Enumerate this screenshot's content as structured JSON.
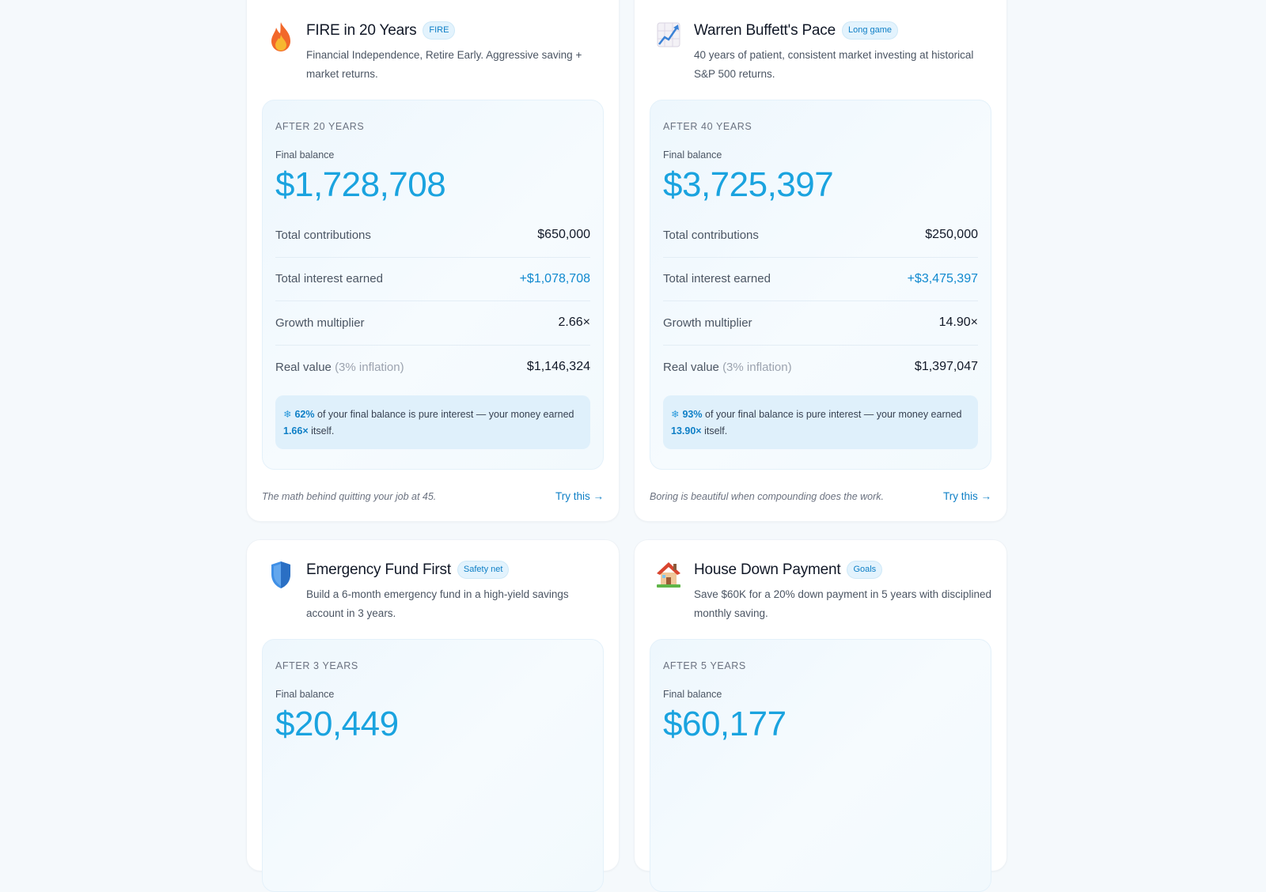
{
  "cards": [
    {
      "icon": "fire-icon",
      "title": "FIRE in 20 Years",
      "badge": "FIRE",
      "description": "Financial Independence, Retire Early. Aggressive saving + market returns.",
      "after": "AFTER 20 YEARS",
      "final_label": "Final balance",
      "final_balance": "$1,728,708",
      "contrib_label": "Total contributions",
      "contributions": "$650,000",
      "interest_label": "Total interest earned",
      "interest": "+$1,078,708",
      "multiplier_label": "Growth multiplier",
      "multiplier": "2.66×",
      "real_label": "Real value",
      "real_note": "(3% inflation)",
      "real_value": "$1,146,324",
      "note_pct": "62%",
      "note_text": " of your final balance is pure interest — your money earned ",
      "note_mult": "1.66×",
      "note_end": " itself.",
      "footer": "The math behind quitting your job at 45.",
      "cta": "Try this →"
    },
    {
      "icon": "chart-increasing-icon",
      "title": "Warren Buffett's Pace",
      "badge": "Long game",
      "description": "40 years of patient, consistent market investing at historical S&P 500 returns.",
      "after": "AFTER 40 YEARS",
      "final_label": "Final balance",
      "final_balance": "$3,725,397",
      "contrib_label": "Total contributions",
      "contributions": "$250,000",
      "interest_label": "Total interest earned",
      "interest": "+$3,475,397",
      "multiplier_label": "Growth multiplier",
      "multiplier": "14.90×",
      "real_label": "Real value",
      "real_note": "(3% inflation)",
      "real_value": "$1,397,047",
      "note_pct": "93%",
      "note_text": " of your final balance is pure interest — your money earned ",
      "note_mult": "13.90×",
      "note_end": " itself.",
      "footer": "Boring is beautiful when compounding does the work.",
      "cta": "Try this →"
    },
    {
      "icon": "shield-icon",
      "title": "Emergency Fund First",
      "badge": "Safety net",
      "description": "Build a 6-month emergency fund in a high-yield savings account in 3 years.",
      "after": "AFTER 3 YEARS",
      "final_label": "Final balance",
      "final_balance": "$20,449"
    },
    {
      "icon": "house-icon",
      "title": "House Down Payment",
      "badge": "Goals",
      "description": "Save $60K for a 20% down payment in 5 years with disciplined monthly saving.",
      "after": "AFTER 5 YEARS",
      "final_label": "Final balance",
      "final_balance": "$60,177"
    }
  ],
  "sparkle_icon": "sparkle-icon",
  "accent_color": "#1aa3df"
}
